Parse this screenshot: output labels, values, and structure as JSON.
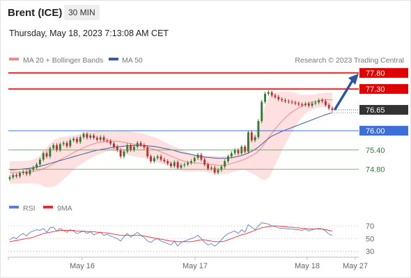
{
  "header": {
    "instrument": "Brent (ICE)",
    "timeframe": "30 MIN",
    "datetime": "Thursday, May 18, 2023 7:13:08 AM CET"
  },
  "legend": {
    "ma20": "MA 20 + Bollinger Bands",
    "ma50": "MA 50",
    "rsi": "RSI",
    "rsi_ma": "9MA"
  },
  "credit": "Research © 2023 Trading Central",
  "colors": {
    "candle_up": "#2e7d32",
    "candle_down": "#c62828",
    "bollinger": "#ffd6d6",
    "ma20": "#f08a8a",
    "ma50": "#3d5a99",
    "resistance": "#e00000",
    "pivot": "#3d6fd8",
    "support": "#5aa35a",
    "current": "#333333",
    "arrow": "#2b56a6",
    "rsi": "#5b7fd6",
    "rsi_ma": "#e03030"
  },
  "chart_data": [
    {
      "type": "candlestick",
      "y_range": [
        74.4,
        77.95
      ],
      "x_ticks": [
        "May 16",
        "May 17",
        "May 18",
        "May 27"
      ],
      "levels": [
        {
          "value": 77.8,
          "label": "77.80",
          "kind": "resistance"
        },
        {
          "value": 77.3,
          "label": "77.30",
          "kind": "resistance"
        },
        {
          "value": 76.65,
          "label": "76.65",
          "kind": "current"
        },
        {
          "value": 76.0,
          "label": "76.00",
          "kind": "pivot"
        },
        {
          "value": 75.4,
          "label": "75.40",
          "kind": "support"
        },
        {
          "value": 74.8,
          "label": "74.80",
          "kind": "support"
        }
      ],
      "close": [
        74.55,
        74.62,
        74.58,
        74.68,
        74.72,
        74.65,
        74.78,
        74.85,
        74.95,
        75.1,
        75.3,
        75.2,
        75.45,
        75.55,
        75.4,
        75.58,
        75.62,
        75.52,
        75.7,
        75.75,
        75.65,
        75.8,
        75.9,
        75.78,
        75.85,
        75.78,
        75.72,
        75.8,
        75.7,
        75.68,
        75.6,
        75.5,
        75.4,
        75.2,
        75.35,
        75.55,
        75.4,
        75.5,
        75.62,
        75.55,
        75.48,
        75.2,
        75.05,
        75.15,
        75.2,
        75.1,
        75.05,
        74.98,
        74.9,
        75.02,
        74.85,
        74.92,
        74.95,
        75.0,
        75.05,
        75.15,
        75.25,
        75.1,
        74.95,
        74.82,
        74.85,
        74.7,
        74.78,
        74.88,
        75.05,
        75.2,
        75.3,
        75.4,
        75.3,
        75.5,
        75.35,
        75.95,
        75.7,
        75.8,
        76.3,
        76.9,
        77.15,
        77.2,
        77.1,
        77.05,
        76.98,
        76.95,
        76.92,
        76.9,
        76.88,
        76.85,
        76.82,
        76.8,
        76.84,
        76.78,
        76.85,
        76.88,
        76.95,
        76.92,
        76.8,
        76.7,
        76.65
      ],
      "ma20": [
        74.7,
        74.7,
        74.7,
        74.7,
        74.71,
        74.71,
        74.72,
        74.73,
        74.75,
        74.78,
        74.82,
        74.86,
        74.92,
        74.98,
        75.03,
        75.09,
        75.15,
        75.2,
        75.26,
        75.32,
        75.37,
        75.42,
        75.47,
        75.52,
        75.56,
        75.59,
        75.62,
        75.64,
        75.66,
        75.67,
        75.68,
        75.68,
        75.67,
        75.66,
        75.64,
        75.62,
        75.6,
        75.58,
        75.56,
        75.55,
        75.53,
        75.49,
        75.45,
        75.42,
        75.38,
        75.34,
        75.3,
        75.26,
        75.21,
        75.17,
        75.12,
        75.08,
        75.05,
        75.02,
        75.0,
        74.99,
        74.99,
        74.98,
        74.97,
        74.96,
        74.95,
        74.94,
        74.92,
        74.92,
        74.93,
        74.95,
        74.98,
        75.01,
        75.04,
        75.08,
        75.11,
        75.17,
        75.22,
        75.28,
        75.36,
        75.48,
        75.62,
        75.78,
        75.92,
        76.06,
        76.18,
        76.3,
        76.4,
        76.5,
        76.58,
        76.65,
        76.71,
        76.77,
        76.82,
        76.86,
        76.89,
        76.91,
        76.94,
        76.96,
        76.97,
        76.97,
        76.96
      ],
      "ma50": [
        74.78,
        74.78,
        74.79,
        74.8,
        74.81,
        74.82,
        74.83,
        74.85,
        74.87,
        74.89,
        74.92,
        74.95,
        74.98,
        75.01,
        75.04,
        75.07,
        75.1,
        75.13,
        75.16,
        75.19,
        75.22,
        75.25,
        75.28,
        75.31,
        75.34,
        75.37,
        75.39,
        75.41,
        75.43,
        75.45,
        75.47,
        75.49,
        75.5,
        75.51,
        75.52,
        75.53,
        75.53,
        75.54,
        75.54,
        75.54,
        75.54,
        75.53,
        75.52,
        75.51,
        75.49,
        75.47,
        75.45,
        75.43,
        75.41,
        75.38,
        75.35,
        75.32,
        75.3,
        75.28,
        75.26,
        75.24,
        75.22,
        75.2,
        75.18,
        75.17,
        75.16,
        75.15,
        75.14,
        75.14,
        75.14,
        75.15,
        75.16,
        75.18,
        75.2,
        75.23,
        75.26,
        75.31,
        75.36,
        75.42,
        75.49,
        75.58,
        75.67,
        75.76,
        75.83,
        75.88,
        75.93,
        75.98,
        76.02,
        76.06,
        76.1,
        76.14,
        76.18,
        76.22,
        76.26,
        76.3,
        76.34,
        76.38,
        76.42,
        76.46,
        76.5,
        76.53,
        76.56
      ],
      "bb_width": [
        0.35,
        0.35,
        0.35,
        0.35,
        0.35,
        0.35,
        0.36,
        0.38,
        0.4,
        0.45,
        0.55,
        0.62,
        0.68,
        0.72,
        0.72,
        0.7,
        0.66,
        0.62,
        0.58,
        0.54,
        0.5,
        0.48,
        0.46,
        0.44,
        0.42,
        0.4,
        0.38,
        0.36,
        0.34,
        0.32,
        0.3,
        0.3,
        0.31,
        0.34,
        0.36,
        0.37,
        0.38,
        0.38,
        0.38,
        0.38,
        0.38,
        0.38,
        0.38,
        0.38,
        0.38,
        0.36,
        0.35,
        0.34,
        0.34,
        0.34,
        0.34,
        0.33,
        0.32,
        0.3,
        0.28,
        0.26,
        0.25,
        0.25,
        0.25,
        0.26,
        0.27,
        0.28,
        0.28,
        0.28,
        0.28,
        0.28,
        0.28,
        0.28,
        0.28,
        0.3,
        0.32,
        0.45,
        0.55,
        0.65,
        0.8,
        1.0,
        1.15,
        1.25,
        1.22,
        1.12,
        1.02,
        0.92,
        0.82,
        0.72,
        0.62,
        0.52,
        0.42,
        0.35,
        0.3,
        0.26,
        0.24,
        0.22,
        0.22,
        0.22,
        0.22,
        0.22,
        0.22
      ]
    },
    {
      "type": "line",
      "series": [
        {
          "name": "RSI"
        },
        {
          "name": "9MA"
        }
      ],
      "y_range": [
        25,
        80
      ],
      "y_ticks": [
        30,
        50,
        70
      ],
      "rsi": [
        48,
        52,
        50,
        55,
        58,
        54,
        60,
        62,
        64,
        63,
        66,
        60,
        67,
        68,
        62,
        66,
        63,
        60,
        64,
        62,
        58,
        60,
        62,
        58,
        61,
        56,
        58,
        60,
        55,
        57,
        54,
        52,
        50,
        46,
        53,
        58,
        52,
        56,
        60,
        55,
        52,
        46,
        44,
        48,
        50,
        46,
        44,
        42,
        40,
        46,
        38,
        44,
        46,
        48,
        50,
        52,
        55,
        50,
        44,
        40,
        42,
        38,
        42,
        48,
        54,
        58,
        60,
        62,
        58,
        64,
        60,
        72,
        68,
        64,
        70,
        75,
        74,
        73,
        70,
        69,
        67,
        66,
        66,
        65,
        65,
        64,
        64,
        63,
        65,
        62,
        64,
        65,
        66,
        65,
        62,
        57,
        55
      ],
      "rsi_ma": [
        45,
        46,
        47,
        48,
        49,
        50,
        51,
        52,
        54,
        56,
        58,
        59,
        60,
        61,
        62,
        63,
        63,
        63,
        63,
        63,
        62,
        62,
        62,
        61,
        61,
        61,
        60,
        60,
        59,
        59,
        58,
        57,
        56,
        55,
        55,
        55,
        55,
        55,
        55,
        55,
        54,
        53,
        52,
        51,
        50,
        49,
        48,
        47,
        46,
        46,
        45,
        45,
        45,
        45,
        45,
        46,
        47,
        48,
        48,
        47,
        46,
        45,
        45,
        45,
        46,
        48,
        50,
        52,
        54,
        56,
        57,
        59,
        61,
        63,
        65,
        67,
        68,
        69,
        70,
        70,
        70,
        69,
        69,
        68,
        68,
        67,
        67,
        66,
        66,
        65,
        65,
        65,
        65,
        65,
        64,
        63,
        62
      ]
    }
  ]
}
